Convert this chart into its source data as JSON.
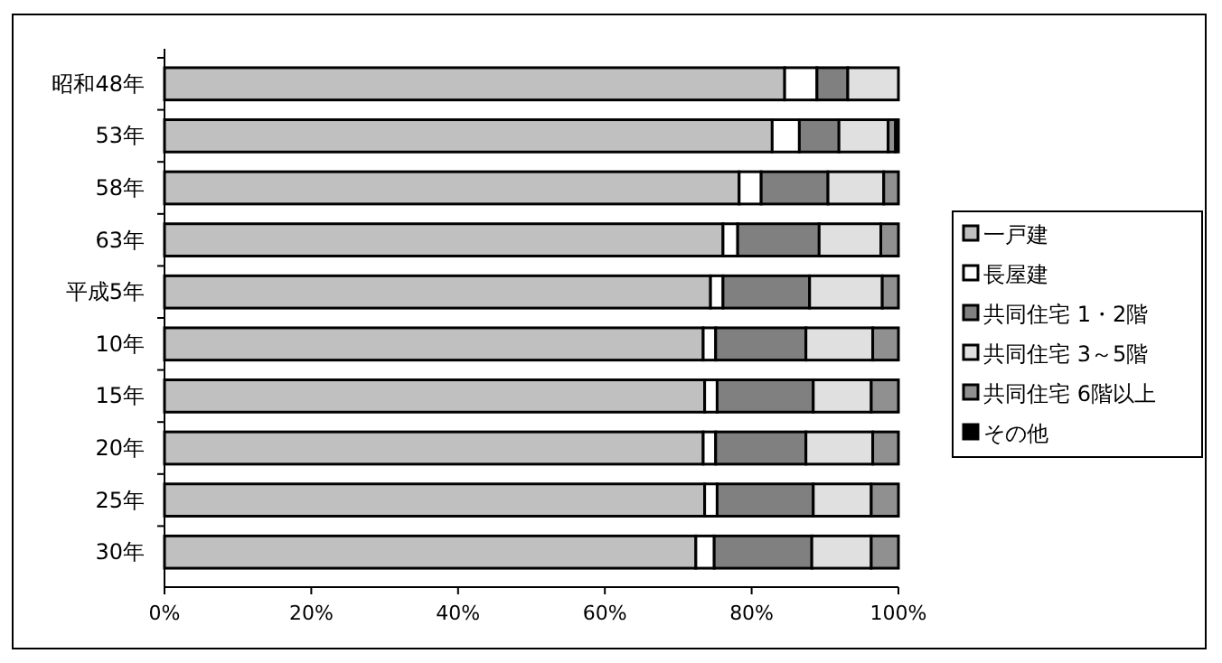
{
  "chart_data": {
    "type": "bar",
    "orientation": "horizontal",
    "stacked": true,
    "categories": [
      "昭和48年",
      "53年",
      "58年",
      "63年",
      "平成5年",
      "10年",
      "15年",
      "20年",
      "25年",
      "30年"
    ],
    "series": [
      {
        "name": "一戸建",
        "color": "#c0c0c0",
        "values": [
          84.5,
          82.8,
          78.3,
          76.1,
          74.4,
          73.4,
          73.6,
          73.4,
          73.6,
          72.4
        ]
      },
      {
        "name": "長屋建",
        "color": "#ffffff",
        "values": [
          4.4,
          3.7,
          3.0,
          2.0,
          1.7,
          1.7,
          1.7,
          1.7,
          1.7,
          2.5
        ]
      },
      {
        "name": "共同住宅 1・2階",
        "color": "#808080",
        "values": [
          4.2,
          5.4,
          9.1,
          11.1,
          11.8,
          12.3,
          13.1,
          12.3,
          13.1,
          13.3
        ]
      },
      {
        "name": "共同住宅 3～5階",
        "color": "#e0e0e0",
        "values": [
          6.9,
          6.7,
          7.6,
          8.4,
          9.9,
          9.1,
          7.9,
          9.1,
          7.9,
          8.1
        ]
      },
      {
        "name": "共同住宅 6階以上",
        "color": "#909090",
        "values": [
          0,
          1.0,
          2.0,
          2.4,
          2.2,
          3.5,
          3.7,
          3.5,
          3.7,
          3.7
        ]
      },
      {
        "name": "その他",
        "color": "#000000",
        "values": [
          0,
          0.4,
          0,
          0,
          0,
          0,
          0,
          0,
          0,
          0
        ]
      }
    ],
    "xlim": [
      0,
      100
    ],
    "xticks": [
      {
        "value": 0,
        "label": "0%"
      },
      {
        "value": 20,
        "label": "20%"
      },
      {
        "value": 40,
        "label": "40%"
      },
      {
        "value": 60,
        "label": "60%"
      },
      {
        "value": 80,
        "label": "80%"
      },
      {
        "value": 100,
        "label": "100%"
      }
    ],
    "grid": false,
    "legend": "right"
  }
}
